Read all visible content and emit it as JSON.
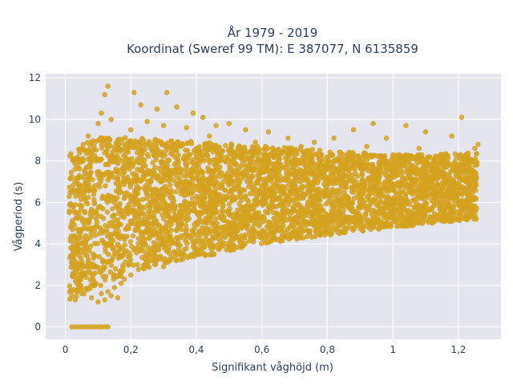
{
  "chart_data": {
    "type": "scatter",
    "title_lines": [
      "År 1979 - 2019",
      "Koordinat (Sweref 99 TM): E 387077, N 6135859"
    ],
    "xlabel": "Signifikant våghöjd (m)",
    "ylabel": "Vågperiod (s)",
    "xlim": [
      -0.06,
      1.33
    ],
    "ylim": [
      -0.6,
      12.2
    ],
    "x_ticks": [
      {
        "value": 0,
        "label": "0"
      },
      {
        "value": 0.2,
        "label": "0,2"
      },
      {
        "value": 0.4,
        "label": "0,4"
      },
      {
        "value": 0.6,
        "label": "0,6"
      },
      {
        "value": 0.8,
        "label": "0,8"
      },
      {
        "value": 1.0,
        "label": "1"
      },
      {
        "value": 1.2,
        "label": "1,2"
      }
    ],
    "y_ticks": [
      {
        "value": 0,
        "label": "0"
      },
      {
        "value": 2,
        "label": "2"
      },
      {
        "value": 4,
        "label": "4"
      },
      {
        "value": 6,
        "label": "6"
      },
      {
        "value": 8,
        "label": "8"
      },
      {
        "value": 10,
        "label": "10"
      },
      {
        "value": 12,
        "label": "12"
      }
    ],
    "grid": true,
    "marker_color": "#D4A21F",
    "background_color": "#E5E5F0",
    "series": [
      {
        "points": [
          [
            0.02,
            1.5
          ],
          [
            0.03,
            1.3
          ],
          [
            0.04,
            2.2
          ],
          [
            0.05,
            1.8
          ],
          [
            0.06,
            2.6
          ],
          [
            0.07,
            3.1
          ],
          [
            0.08,
            1.4
          ],
          [
            0.09,
            2.0
          ],
          [
            0.1,
            1.2
          ],
          [
            0.11,
            1.6
          ],
          [
            0.12,
            1.3
          ],
          [
            0.13,
            1.7
          ],
          [
            0.14,
            1.5
          ],
          [
            0.15,
            1.9
          ],
          [
            0.16,
            1.4
          ],
          [
            0.17,
            2.1
          ],
          [
            0.18,
            2.3
          ],
          [
            0.02,
            5.0
          ],
          [
            0.03,
            6.5
          ],
          [
            0.04,
            8.0
          ],
          [
            0.05,
            8.6
          ],
          [
            0.06,
            7.4
          ],
          [
            0.07,
            9.2
          ],
          [
            0.08,
            5.6
          ],
          [
            0.09,
            6.8
          ],
          [
            0.1,
            9.8
          ],
          [
            0.11,
            10.3
          ],
          [
            0.12,
            11.2
          ],
          [
            0.13,
            11.6
          ],
          [
            0.14,
            10.0
          ],
          [
            0.15,
            7.2
          ],
          [
            0.16,
            9.0
          ],
          [
            0.17,
            4.4
          ],
          [
            0.18,
            3.6
          ],
          [
            0.02,
            0.0
          ],
          [
            0.03,
            0.0
          ],
          [
            0.04,
            0.0
          ],
          [
            0.05,
            0.0
          ],
          [
            0.06,
            0.0
          ],
          [
            0.07,
            0.0
          ],
          [
            0.08,
            0.0
          ],
          [
            0.09,
            0.0
          ],
          [
            0.1,
            0.0
          ],
          [
            0.11,
            0.0
          ],
          [
            0.12,
            0.0
          ],
          [
            0.13,
            0.0
          ],
          [
            0.2,
            2.5
          ],
          [
            0.2,
            6.2
          ],
          [
            0.2,
            9.5
          ],
          [
            0.21,
            11.3
          ],
          [
            0.22,
            3.0
          ],
          [
            0.22,
            7.6
          ],
          [
            0.23,
            10.7
          ],
          [
            0.24,
            2.8
          ],
          [
            0.24,
            5.4
          ],
          [
            0.25,
            9.9
          ],
          [
            0.26,
            3.2
          ],
          [
            0.27,
            8.3
          ],
          [
            0.28,
            10.5
          ],
          [
            0.29,
            3.4
          ],
          [
            0.3,
            6.7
          ],
          [
            0.3,
            9.7
          ],
          [
            0.31,
            11.3
          ],
          [
            0.32,
            4.0
          ],
          [
            0.33,
            8.8
          ],
          [
            0.34,
            10.6
          ],
          [
            0.35,
            3.6
          ],
          [
            0.36,
            7.0
          ],
          [
            0.37,
            9.6
          ],
          [
            0.38,
            4.4
          ],
          [
            0.39,
            10.3
          ],
          [
            0.4,
            5.0
          ],
          [
            0.41,
            8.4
          ],
          [
            0.42,
            10.1
          ],
          [
            0.43,
            4.2
          ],
          [
            0.44,
            9.2
          ],
          [
            0.45,
            6.1
          ],
          [
            0.46,
            9.7
          ],
          [
            0.48,
            5.2
          ],
          [
            0.49,
            8.0
          ],
          [
            0.5,
            9.8
          ],
          [
            0.52,
            4.6
          ],
          [
            0.53,
            7.4
          ],
          [
            0.55,
            9.5
          ],
          [
            0.56,
            5.4
          ],
          [
            0.58,
            8.9
          ],
          [
            0.6,
            4.6
          ],
          [
            0.61,
            7.9
          ],
          [
            0.62,
            9.4
          ],
          [
            0.64,
            5.1
          ],
          [
            0.66,
            8.4
          ],
          [
            0.68,
            9.1
          ],
          [
            0.7,
            4.8
          ],
          [
            0.72,
            8.7
          ],
          [
            0.74,
            6.0
          ],
          [
            0.76,
            8.9
          ],
          [
            0.78,
            5.3
          ],
          [
            0.8,
            7.8
          ],
          [
            0.82,
            9.1
          ],
          [
            0.84,
            5.9
          ],
          [
            0.86,
            8.0
          ],
          [
            0.88,
            9.5
          ],
          [
            0.9,
            6.2
          ],
          [
            0.92,
            8.7
          ],
          [
            0.94,
            9.8
          ],
          [
            0.96,
            6.4
          ],
          [
            0.98,
            9.1
          ],
          [
            1.0,
            5.9
          ],
          [
            1.02,
            8.3
          ],
          [
            1.04,
            9.7
          ],
          [
            1.06,
            6.4
          ],
          [
            1.08,
            8.6
          ],
          [
            1.1,
            9.4
          ],
          [
            1.12,
            6.8
          ],
          [
            1.14,
            8.2
          ],
          [
            1.16,
            7.2
          ],
          [
            1.18,
            9.2
          ],
          [
            1.2,
            6.8
          ],
          [
            1.21,
            10.1
          ],
          [
            1.22,
            7.5
          ],
          [
            1.23,
            8.2
          ],
          [
            1.24,
            8.0
          ],
          [
            1.25,
            8.6
          ],
          [
            1.26,
            8.8
          ],
          [
            0.3,
            2.9
          ],
          [
            0.4,
            3.5
          ],
          [
            0.5,
            3.9
          ],
          [
            0.6,
            4.3
          ],
          [
            0.7,
            4.6
          ],
          [
            0.8,
            4.9
          ],
          [
            0.9,
            5.2
          ],
          [
            1.0,
            5.5
          ],
          [
            1.1,
            5.9
          ],
          [
            1.2,
            6.4
          ],
          [
            1.25,
            7.1
          ],
          [
            0.25,
            4.8
          ],
          [
            0.35,
            5.2
          ],
          [
            0.45,
            7.5
          ],
          [
            0.55,
            6.3
          ],
          [
            0.65,
            7.1
          ],
          [
            0.75,
            6.6
          ],
          [
            0.85,
            7.3
          ],
          [
            0.95,
            7.6
          ],
          [
            1.05,
            7.4
          ],
          [
            1.15,
            7.9
          ],
          [
            0.15,
            6.0
          ],
          [
            0.05,
            4.0
          ],
          [
            0.08,
            3.0
          ],
          [
            0.12,
            8.4
          ],
          [
            0.18,
            7.0
          ],
          [
            0.22,
            5.5
          ],
          [
            0.28,
            6.3
          ],
          [
            0.33,
            5.8
          ],
          [
            0.38,
            6.9
          ],
          [
            0.42,
            7.2
          ]
        ]
      }
    ]
  }
}
